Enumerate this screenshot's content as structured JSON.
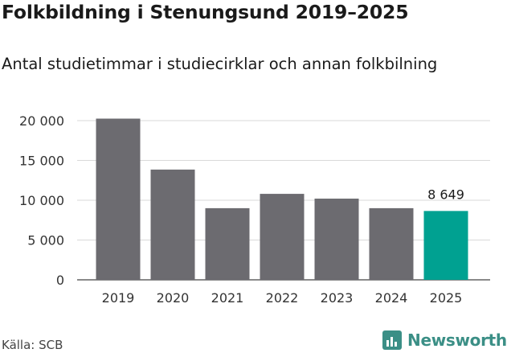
{
  "header": {
    "title": "Folkbildning i Stenungsund 2019–2025",
    "subtitle": "Antal studietimmar i studiecirklar och annan folkbilning"
  },
  "footer": {
    "source": "Källa: SCB",
    "brand": "Newsworthy"
  },
  "colors": {
    "bar": "#6c6b70",
    "highlight": "#00a191",
    "brand": "#3b8f86"
  },
  "chart_data": {
    "type": "bar",
    "title": "Folkbildning i Stenungsund 2019–2025",
    "subtitle": "Antal studietimmar i studiecirklar och annan folkbilning",
    "xlabel": "",
    "ylabel": "",
    "categories": [
      "2019",
      "2020",
      "2021",
      "2022",
      "2023",
      "2024",
      "2025"
    ],
    "values": [
      20250,
      13850,
      9000,
      10800,
      10200,
      9000,
      8649
    ],
    "highlight_index": 6,
    "data_labels": [
      {
        "index": 6,
        "text": "8 649"
      }
    ],
    "yticks": [
      {
        "value": 0,
        "label": "0"
      },
      {
        "value": 5000,
        "label": "5 000"
      },
      {
        "value": 10000,
        "label": "10 000"
      },
      {
        "value": 15000,
        "label": "15 000"
      },
      {
        "value": 20000,
        "label": "20 000"
      }
    ],
    "ylim": [
      0,
      20000
    ],
    "grid": true,
    "legend": "none"
  }
}
